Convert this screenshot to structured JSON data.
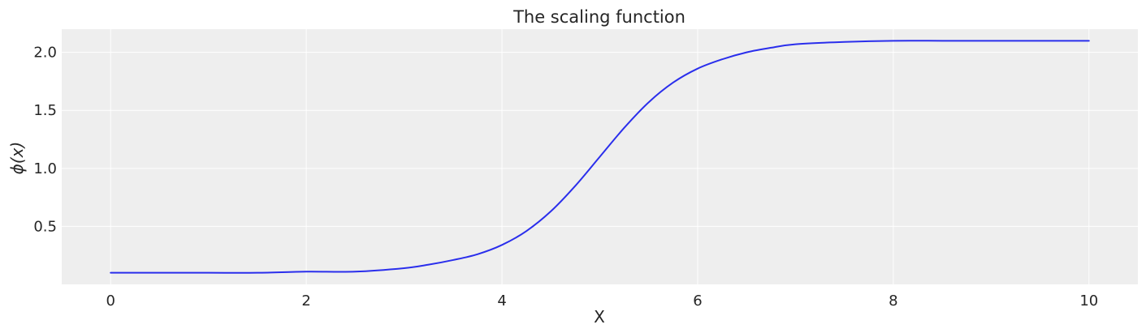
{
  "chart_data": {
    "type": "line",
    "title": "The scaling function",
    "xlabel": "X",
    "ylabel": "ϕ(x)",
    "xlim": [
      -0.5,
      10.5
    ],
    "ylim": [
      0.0,
      2.2
    ],
    "xticks": [
      0,
      2,
      4,
      6,
      8,
      10
    ],
    "xtick_labels": [
      "0",
      "2",
      "4",
      "6",
      "8",
      "10"
    ],
    "yticks": [
      0.5,
      1.0,
      1.5,
      2.0
    ],
    "ytick_labels": [
      "0.5",
      "1.0",
      "1.5",
      "2.0"
    ],
    "grid": true,
    "colors": {
      "line": "#2a2eec",
      "plot_background": "#eeeeee",
      "grid": "#ffffff",
      "text": "#262626"
    },
    "series": [
      {
        "x": [
          0,
          0.5,
          1,
          1.5,
          2,
          2.5,
          3,
          3.25,
          3.5,
          3.75,
          4,
          4.25,
          4.5,
          4.75,
          5,
          5.25,
          5.5,
          5.75,
          6,
          6.25,
          6.5,
          6.75,
          7,
          7.5,
          8,
          8.5,
          9,
          9.5,
          10
        ],
        "y": [
          0.1,
          0.1,
          0.1,
          0.1,
          0.11,
          0.11,
          0.14,
          0.17,
          0.21,
          0.26,
          0.34,
          0.46,
          0.63,
          0.85,
          1.1,
          1.35,
          1.57,
          1.74,
          1.86,
          1.94,
          2.0,
          2.04,
          2.07,
          2.09,
          2.1,
          2.1,
          2.1,
          2.1,
          2.1
        ]
      }
    ]
  }
}
